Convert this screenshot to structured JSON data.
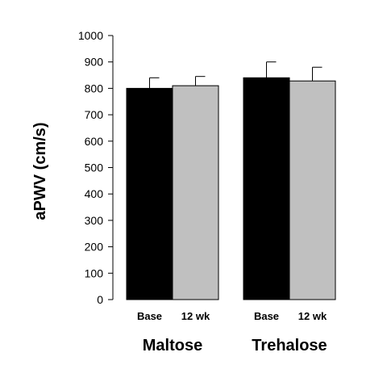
{
  "chart_data": {
    "type": "bar",
    "ylabel": "aPWV (cm/s)",
    "ylim": [
      0,
      1000
    ],
    "yticks": [
      0,
      100,
      200,
      300,
      400,
      500,
      600,
      700,
      800,
      900,
      1000
    ],
    "groups": [
      {
        "label": "Maltose",
        "bars": [
          {
            "label": "Base",
            "value": 800,
            "error": 40,
            "color": "#000000"
          },
          {
            "label": "12 wk",
            "value": 810,
            "error": 35,
            "color": "#c0c0c0"
          }
        ]
      },
      {
        "label": "Trehalose",
        "bars": [
          {
            "label": "Base",
            "value": 840,
            "error": 60,
            "color": "#000000"
          },
          {
            "label": "12 wk",
            "value": 828,
            "error": 52,
            "color": "#c0c0c0"
          }
        ]
      }
    ],
    "grid": false
  }
}
